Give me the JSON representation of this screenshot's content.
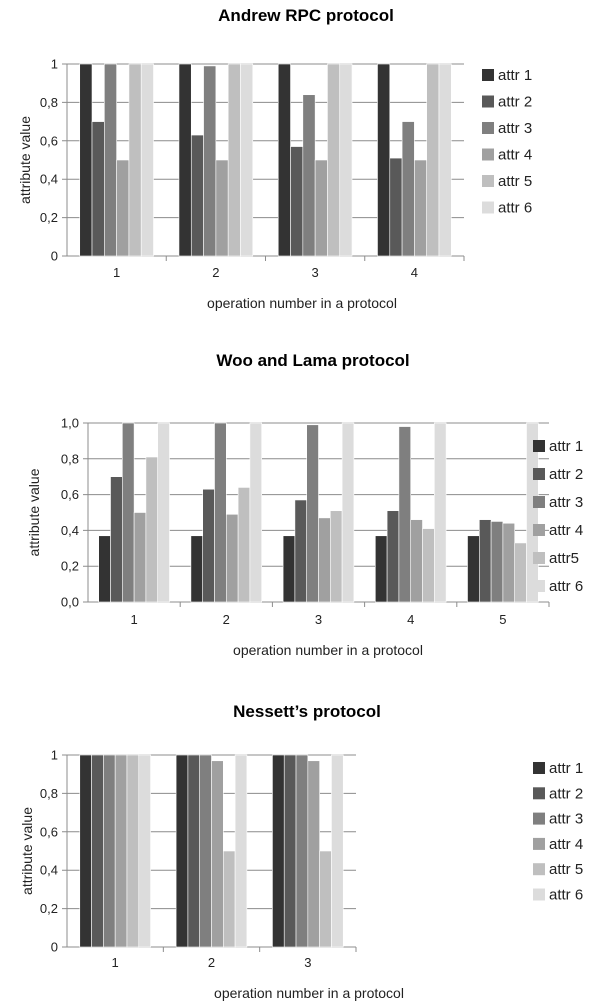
{
  "series_colors": [
    "#333333",
    "#595959",
    "#7f7f7f",
    "#a0a0a0",
    "#bfbfbf",
    "#dcdcdc"
  ],
  "chart_data": [
    {
      "type": "bar",
      "title": "Andrew RPC protocol",
      "xlabel": "operation number in a protocol",
      "ylabel": "attribute value",
      "ylim": [
        0,
        1
      ],
      "yticks": [
        "0",
        "0,2",
        "0,4",
        "0,6",
        "0,8",
        "1"
      ],
      "grid": true,
      "legend_position": "right",
      "categories": [
        "1",
        "2",
        "3",
        "4"
      ],
      "series": [
        {
          "name": "attr 1",
          "values": [
            1,
            1,
            1,
            1
          ]
        },
        {
          "name": "attr 2",
          "values": [
            0.7,
            0.63,
            0.57,
            0.51
          ]
        },
        {
          "name": "attr 3",
          "values": [
            1,
            0.99,
            0.84,
            0.7
          ]
        },
        {
          "name": "attr 4",
          "values": [
            0.5,
            0.5,
            0.5,
            0.5
          ]
        },
        {
          "name": "attr 5",
          "values": [
            1,
            1,
            1,
            1
          ]
        },
        {
          "name": "attr 6",
          "values": [
            1,
            1,
            1,
            1
          ]
        }
      ]
    },
    {
      "type": "bar",
      "title": "Woo and Lama protocol",
      "xlabel": "operation number in a protocol",
      "ylabel": "attribute value",
      "ylim": [
        0,
        1
      ],
      "yticks": [
        "0,0",
        "0,2",
        "0,4",
        "0,6",
        "0,8",
        "1,0"
      ],
      "grid": true,
      "legend_position": "right",
      "categories": [
        "1",
        "2",
        "3",
        "4",
        "5"
      ],
      "series": [
        {
          "name": "attr 1",
          "values": [
            0.37,
            0.37,
            0.37,
            0.37,
            0.37
          ]
        },
        {
          "name": "attr 2",
          "values": [
            0.7,
            0.63,
            0.57,
            0.51,
            0.46
          ]
        },
        {
          "name": "attr 3",
          "values": [
            1,
            1,
            0.99,
            0.98,
            0.45
          ]
        },
        {
          "name": "attr 4",
          "values": [
            0.5,
            0.49,
            0.47,
            0.46,
            0.44
          ]
        },
        {
          "name": "attr5",
          "values": [
            0.81,
            0.64,
            0.51,
            0.41,
            0.33
          ]
        },
        {
          "name": "attr 6",
          "values": [
            1,
            1,
            1,
            1,
            1
          ]
        }
      ]
    },
    {
      "type": "bar",
      "title": "Nessett’s protocol",
      "xlabel": "operation number in a protocol",
      "ylabel": "attribute value",
      "ylim": [
        0,
        1
      ],
      "yticks": [
        "0",
        "0,2",
        "0,4",
        "0,6",
        "0,8",
        "1"
      ],
      "grid": true,
      "legend_position": "right",
      "categories": [
        "1",
        "2",
        "3"
      ],
      "series": [
        {
          "name": "attr 1",
          "values": [
            1,
            1,
            1
          ]
        },
        {
          "name": "attr 2",
          "values": [
            1,
            1,
            1
          ]
        },
        {
          "name": "attr 3",
          "values": [
            1,
            1,
            1
          ]
        },
        {
          "name": "attr 4",
          "values": [
            1,
            0.97,
            0.97
          ]
        },
        {
          "name": "attr 5",
          "values": [
            1,
            0.5,
            0.5
          ]
        },
        {
          "name": "attr 6",
          "values": [
            1,
            1,
            1
          ]
        }
      ]
    }
  ]
}
